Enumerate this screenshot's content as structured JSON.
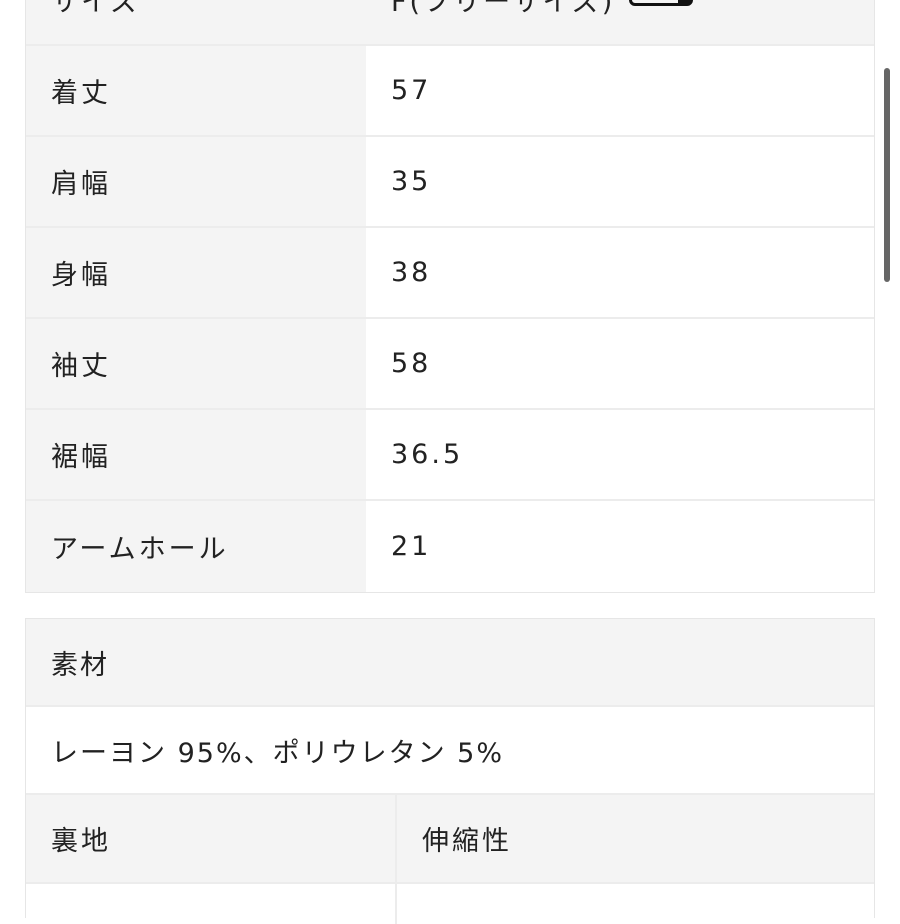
{
  "size_table": {
    "header": {
      "label": "サイズ",
      "value": "F(フリーサイズ)",
      "icon": "measuring-tape-icon"
    },
    "rows": [
      {
        "label": "着丈",
        "value": "57"
      },
      {
        "label": "肩幅",
        "value": "35"
      },
      {
        "label": "身幅",
        "value": "38"
      },
      {
        "label": "袖丈",
        "value": "58"
      },
      {
        "label": "裾幅",
        "value": "36.5"
      },
      {
        "label": "アームホール",
        "value": "21"
      }
    ]
  },
  "material_table": {
    "header": "素材",
    "value": "レーヨン 95%、ポリウレタン 5%",
    "sub_headers": [
      "裏地",
      "伸縮性"
    ]
  }
}
